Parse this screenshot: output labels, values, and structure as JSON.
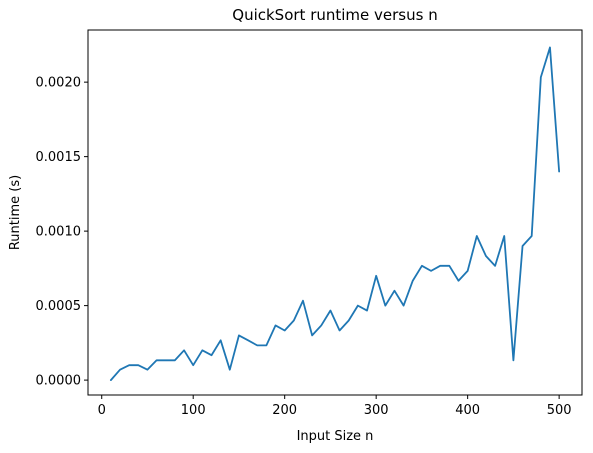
{
  "chart_data": {
    "type": "line",
    "title": "QuickSort runtime versus n",
    "xlabel": "Input Size n",
    "ylabel": "Runtime (s)",
    "xlim": [
      -15,
      525
    ],
    "ylim": [
      -0.0001,
      0.00235
    ],
    "x_ticks": [
      0,
      100,
      200,
      300,
      400,
      500
    ],
    "x_tick_labels": [
      "0",
      "100",
      "200",
      "300",
      "400",
      "500"
    ],
    "y_ticks": [
      0,
      0.0005,
      0.001,
      0.0015,
      0.002
    ],
    "y_tick_labels": [
      "0.0000",
      "0.0005",
      "0.0010",
      "0.0015",
      "0.0020"
    ],
    "grid": false,
    "line_color": "#1f77b4",
    "series": [
      {
        "x": [
          10,
          20,
          30,
          40,
          50,
          60,
          70,
          80,
          90,
          100,
          110,
          120,
          130,
          140,
          150,
          160,
          170,
          180,
          190,
          200,
          210,
          220,
          230,
          240,
          250,
          260,
          270,
          280,
          290,
          300,
          310,
          320,
          330,
          340,
          350,
          360,
          370,
          380,
          390,
          400,
          410,
          420,
          430,
          440,
          450,
          460,
          470,
          480,
          490,
          500
        ],
        "values": [
          0.0,
          7e-05,
          0.0001,
          0.0001,
          7e-05,
          0.000133,
          0.000133,
          0.000133,
          0.0002,
          0.0001,
          0.0002,
          0.000167,
          0.000267,
          7e-05,
          0.0003,
          0.000267,
          0.000233,
          0.000233,
          0.000367,
          0.000333,
          0.0004,
          0.000533,
          0.0003,
          0.000367,
          0.000467,
          0.000333,
          0.0004,
          0.0005,
          0.000467,
          0.0007,
          0.0005,
          0.0006,
          0.0005,
          0.000667,
          0.000767,
          0.000733,
          0.000767,
          0.000767,
          0.000667,
          0.000733,
          0.000967,
          0.000833,
          0.000767,
          0.000967,
          0.000133,
          0.0009,
          0.000967,
          0.002033,
          0.002233,
          0.0014
        ]
      }
    ]
  }
}
